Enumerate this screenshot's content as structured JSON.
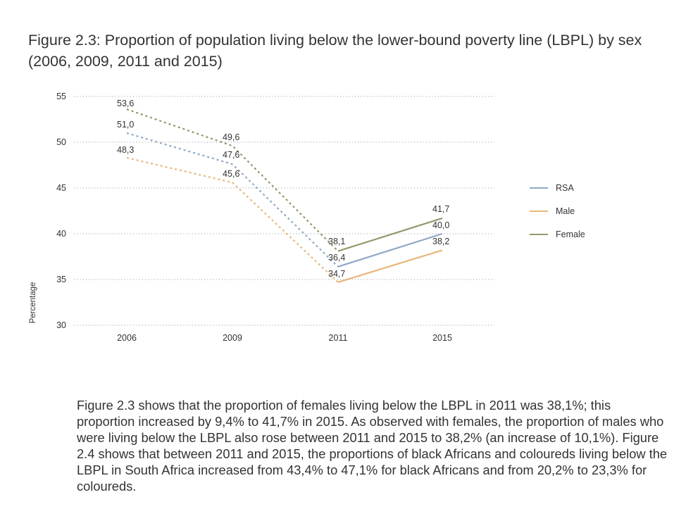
{
  "title": "Figure 2.3: Proportion of population living below the lower-bound poverty line (LBPL) by sex (2006, 2009, 2011 and 2015)",
  "paragraph": "Figure 2.3 shows that the proportion of females living below the LBPL in 2011 was 38,1%; this proportion increased by 9,4% to 41,7% in 2015. As observed with females, the proportion of males who were living below the LBPL also rose between 2011 and 2015 to 38,2% (an increase of 10,1%). Figure 2.4 shows that between 2011 and 2015, the proportions of black Africans and coloureds living below the LBPL in South Africa increased from 43,4% to 47,1% for black Africans and from 20,2% to 23,3% for coloureds.",
  "chart_data": {
    "type": "line",
    "ylabel": "Percentage",
    "xlabel": "",
    "categories": [
      "2006",
      "2009",
      "2011",
      "2015"
    ],
    "ylim": [
      30,
      55
    ],
    "yticks": [
      "30",
      "35",
      "40",
      "45",
      "50",
      "55"
    ],
    "grid": "horizontal-dotted",
    "legend_position": "right",
    "dashed_segments": "2006-2011 dashed, 2011-2015 solid",
    "series": [
      {
        "name": "RSA",
        "color": "#8fa8c4",
        "values": [
          51.0,
          47.6,
          36.4,
          40.0
        ],
        "labels": [
          "51,0",
          "47,6",
          "36,4",
          "40,0"
        ]
      },
      {
        "name": "Male",
        "color": "#e8b77a",
        "values": [
          48.3,
          45.6,
          34.7,
          38.2
        ],
        "labels": [
          "48,3",
          "45,6",
          "34,7",
          "38,2"
        ]
      },
      {
        "name": "Female",
        "color": "#8e9a6a",
        "values": [
          53.6,
          49.6,
          38.1,
          41.7
        ],
        "labels": [
          "53,6",
          "49,6",
          "38,1",
          "41,7"
        ]
      }
    ]
  }
}
